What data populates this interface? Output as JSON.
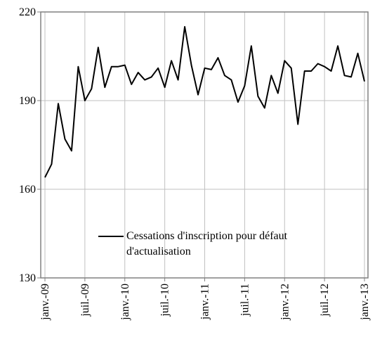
{
  "chart_data": {
    "type": "line",
    "categories": [
      "janv.-09",
      null,
      null,
      null,
      null,
      null,
      "juil.-09",
      null,
      null,
      null,
      null,
      null,
      "janv.-10",
      null,
      null,
      null,
      null,
      null,
      "juil.-10",
      null,
      null,
      null,
      null,
      null,
      "janv.-11",
      null,
      null,
      null,
      null,
      null,
      "juil.-11",
      null,
      null,
      null,
      null,
      null,
      "janv.-12",
      null,
      null,
      null,
      null,
      null,
      "juil.-12",
      null,
      null,
      null,
      null,
      null,
      "janv.-13"
    ],
    "series": [
      {
        "name": "Cessations d'inscription pour défaut d'actualisation",
        "color": "#000000",
        "values": [
          164,
          168.5,
          189,
          177,
          173,
          201.5,
          190,
          194,
          208,
          194.5,
          201.5,
          201.5,
          202,
          195.5,
          199.5,
          197,
          198,
          201,
          194.5,
          203.5,
          197,
          215,
          202,
          192,
          201,
          200.5,
          204.5,
          198.5,
          197,
          189.5,
          195,
          208.5,
          191.5,
          187.5,
          198.5,
          192.5,
          203.5,
          201,
          182,
          200,
          200,
          202.5,
          201.5,
          200,
          208.5,
          198.5,
          198,
          206,
          196.5
        ]
      }
    ],
    "ylim": [
      130,
      220
    ],
    "yticks": [
      130,
      160,
      190,
      220
    ],
    "grid": true
  }
}
